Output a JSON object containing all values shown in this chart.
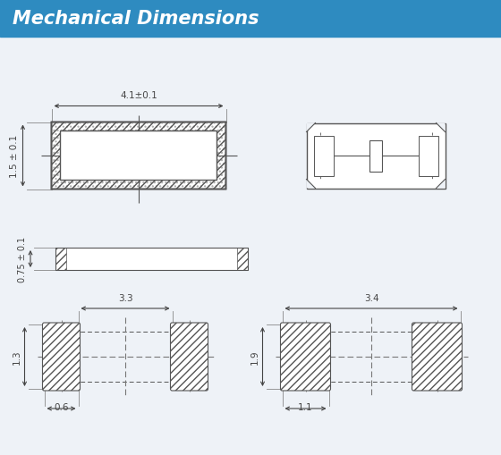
{
  "title": "Mechanical Dimensions",
  "title_bg": "#2E8BC0",
  "title_color": "#FFFFFF",
  "bg_color": "#EEF2F7",
  "line_color": "#555555",
  "dim_color": "#444444"
}
